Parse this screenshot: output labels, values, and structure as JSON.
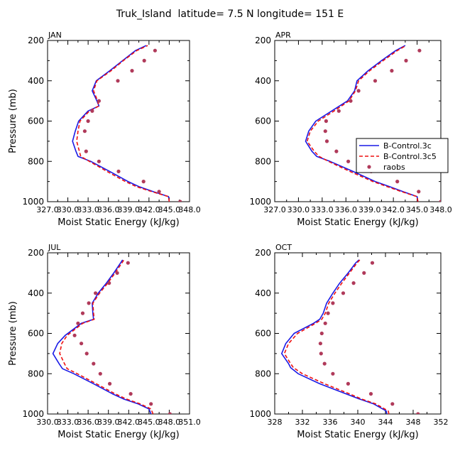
{
  "title": "Truk_Island  latitude= 7.5 N longitude= 151 E",
  "colors": {
    "control_3c": "#1a1ae6",
    "control_3c5": "#ee1111",
    "raobs": "#b03a5a"
  },
  "legend": {
    "placement": "right-middle of APR panel",
    "entries": [
      "B-Control.3c",
      "B-Control.3c5",
      "raobs"
    ]
  },
  "chart_data": [
    {
      "type": "line",
      "panel": "JAN",
      "xlabel": "Moist Static Energy (kJ/kg)",
      "ylabel": "Pressure (mb)",
      "xlim": [
        327.0,
        348.0
      ],
      "ylim": [
        1000,
        200
      ],
      "xtick_labels": [
        "327.0",
        "330.0",
        "333.0",
        "336.0",
        "339.0",
        "342.0",
        "345.0",
        "348.0"
      ],
      "xtick_values": [
        327,
        330,
        333,
        336,
        339,
        342,
        345,
        348
      ],
      "ytick_values": [
        200,
        400,
        600,
        800,
        1000
      ],
      "pressure": [
        1000,
        975,
        950,
        925,
        900,
        850,
        800,
        775,
        750,
        700,
        650,
        600,
        550,
        525,
        500,
        450,
        400,
        350,
        300,
        250,
        225
      ],
      "series": [
        {
          "name": "B-Control.3c",
          "values": [
            345.0,
            344.9,
            342.6,
            340.5,
            338.9,
            336.2,
            333.4,
            331.5,
            331.2,
            330.7,
            331.1,
            331.6,
            333.0,
            334.6,
            334.3,
            333.6,
            334.2,
            336.2,
            338.1,
            340.0,
            341.6
          ]
        },
        {
          "name": "B-Control.3c5",
          "values": [
            345.0,
            344.9,
            342.4,
            340.1,
            338.5,
            335.8,
            333.2,
            331.9,
            331.7,
            331.3,
            331.5,
            331.8,
            333.2,
            334.6,
            334.4,
            333.8,
            334.3,
            336.4,
            338.2,
            340.2,
            341.8
          ]
        },
        {
          "name": "raobs",
          "values": [
            346.6,
            null,
            343.5,
            null,
            341.2,
            337.5,
            334.6,
            null,
            332.7,
            null,
            332.5,
            333.0,
            333.6,
            null,
            334.6,
            null,
            337.4,
            339.5,
            341.3,
            342.9,
            null
          ]
        }
      ]
    },
    {
      "type": "line",
      "panel": "APR",
      "xlabel": "Moist Static Energy (kJ/kg)",
      "ylabel": "Pressure (mb)",
      "xlim": [
        327.0,
        348.0
      ],
      "ylim": [
        1000,
        200
      ],
      "xtick_labels": [
        "327.0",
        "330.0",
        "333.0",
        "336.0",
        "339.0",
        "342.0",
        "345.0",
        "348.0"
      ],
      "xtick_values": [
        327,
        330,
        333,
        336,
        339,
        342,
        345,
        348
      ],
      "ytick_values": [
        200,
        400,
        600,
        800,
        1000
      ],
      "pressure": [
        1000,
        975,
        950,
        925,
        900,
        850,
        800,
        775,
        750,
        700,
        650,
        600,
        550,
        500,
        450,
        400,
        350,
        300,
        250,
        225
      ],
      "series": [
        {
          "name": "B-Control.3c",
          "values": [
            345.1,
            345.0,
            343.2,
            341.5,
            339.7,
            336.9,
            334.0,
            332.3,
            331.7,
            330.9,
            331.3,
            332.2,
            334.2,
            336.2,
            337.1,
            337.4,
            338.8,
            340.5,
            342.3,
            343.5
          ]
        },
        {
          "name": "B-Control.3c5",
          "values": [
            345.1,
            345.0,
            343.0,
            341.2,
            339.4,
            336.5,
            333.8,
            332.6,
            332.0,
            331.1,
            331.5,
            332.5,
            334.5,
            336.4,
            337.2,
            337.6,
            339.0,
            340.7,
            342.5,
            343.6
          ]
        },
        {
          "name": "raobs",
          "values": [
            348.0,
            null,
            345.2,
            null,
            342.5,
            339.2,
            336.3,
            null,
            334.8,
            333.6,
            333.4,
            333.5,
            335.1,
            336.6,
            337.6,
            339.7,
            341.8,
            343.6,
            345.3,
            null
          ]
        }
      ]
    },
    {
      "type": "line",
      "panel": "JUL",
      "xlabel": "Moist Static Energy (kJ/kg)",
      "ylabel": "Pressure (mb)",
      "xlim": [
        330.0,
        351.0
      ],
      "ylim": [
        1000,
        200
      ],
      "xtick_labels": [
        "330.0",
        "333.0",
        "336.0",
        "339.0",
        "342.0",
        "345.0",
        "348.0",
        "351.0"
      ],
      "xtick_values": [
        330,
        333,
        336,
        339,
        342,
        345,
        348,
        351
      ],
      "ytick_values": [
        200,
        400,
        600,
        800,
        1000
      ],
      "pressure": [
        1000,
        975,
        950,
        925,
        900,
        850,
        800,
        775,
        750,
        700,
        650,
        610,
        550,
        530,
        500,
        450,
        400,
        350,
        300,
        250,
        235
      ],
      "series": [
        {
          "name": "B-Control.3c",
          "values": [
            345.3,
            345.0,
            343.4,
            341.2,
            339.6,
            336.8,
            333.9,
            332.2,
            331.7,
            330.8,
            331.5,
            332.6,
            335.0,
            336.8,
            336.7,
            336.6,
            337.5,
            338.7,
            339.8,
            340.8,
            341.1
          ]
        },
        {
          "name": "B-Control.3c5",
          "values": [
            345.6,
            345.3,
            343.7,
            341.6,
            340.0,
            337.2,
            334.4,
            332.9,
            332.5,
            331.8,
            332.1,
            332.9,
            335.2,
            336.9,
            336.8,
            336.7,
            337.7,
            338.9,
            340.0,
            341.0,
            341.3
          ]
        },
        {
          "name": "raobs",
          "values": [
            348.1,
            null,
            345.3,
            null,
            342.3,
            339.2,
            337.8,
            null,
            336.8,
            335.8,
            335.0,
            334.0,
            334.5,
            null,
            335.2,
            336.1,
            337.1,
            339.1,
            340.3,
            341.9,
            null
          ]
        }
      ]
    },
    {
      "type": "line",
      "panel": "OCT",
      "xlabel": "Moist Static Energy (kJ/kg)",
      "ylabel": "Pressure (mb)",
      "xlim": [
        328,
        352
      ],
      "ylim": [
        1000,
        200
      ],
      "xtick_labels": [
        "328",
        "332",
        "336",
        "340",
        "344",
        "348",
        "352"
      ],
      "xtick_values": [
        328,
        332,
        336,
        340,
        344,
        348,
        352
      ],
      "ytick_values": [
        200,
        400,
        600,
        800,
        1000
      ],
      "pressure": [
        1000,
        985,
        950,
        925,
        900,
        850,
        800,
        770,
        750,
        700,
        650,
        600,
        550,
        530,
        500,
        450,
        400,
        350,
        300,
        250,
        235
      ],
      "series": [
        {
          "name": "B-Control.3c",
          "values": [
            344.2,
            344.1,
            342.3,
            340.2,
            338.3,
            334.5,
            331.4,
            330.3,
            330.0,
            329.0,
            329.6,
            330.8,
            333.6,
            334.5,
            335.0,
            335.5,
            336.4,
            337.4,
            338.6,
            339.7,
            340.2
          ]
        },
        {
          "name": "B-Control.3c5",
          "values": [
            344.5,
            344.4,
            342.6,
            340.5,
            338.8,
            335.2,
            332.0,
            330.7,
            330.3,
            329.4,
            330.0,
            331.3,
            333.9,
            334.8,
            335.3,
            335.8,
            336.7,
            337.7,
            338.8,
            339.9,
            340.3
          ]
        },
        {
          "name": "raobs",
          "values": [
            348.7,
            null,
            345.0,
            null,
            341.9,
            338.6,
            336.4,
            null,
            335.2,
            334.7,
            334.6,
            334.8,
            335.3,
            null,
            335.7,
            336.4,
            337.9,
            339.4,
            340.9,
            342.1,
            null
          ]
        }
      ]
    }
  ]
}
